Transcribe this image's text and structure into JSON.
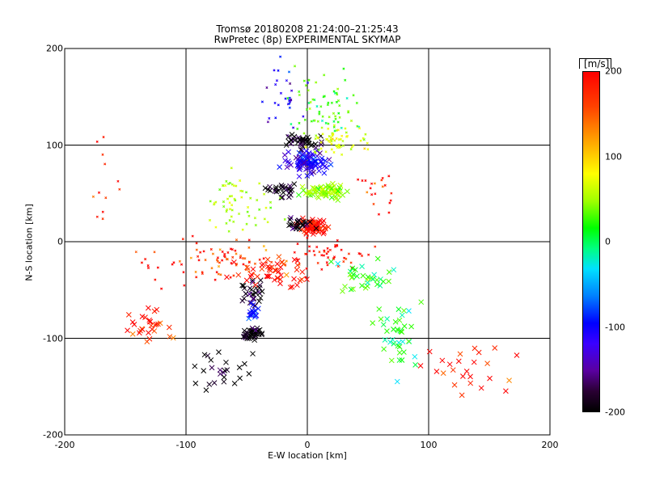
{
  "chart_data": {
    "type": "scatter",
    "title": "Tromsø 20180208 21:24:00–21:25:43",
    "subtitle": "RwPretec (8p) EXPERIMENTAL SKYMAP",
    "xlabel": "E-W location [km]",
    "ylabel": "N-S location [km]",
    "xlim": [
      -200,
      200
    ],
    "ylim": [
      -200,
      200
    ],
    "x_ticks": [
      -200,
      -100,
      0,
      100,
      200
    ],
    "y_ticks": [
      -200,
      -100,
      0,
      100,
      200
    ],
    "grid": "lines at ±100 and 0 km",
    "colorbar": {
      "unit_label": "[m/s]",
      "range": [
        -200,
        200
      ],
      "ticks": [
        200,
        100,
        0,
        -100,
        -200
      ],
      "colormap": "black-purple-blue-cyan-green-yellow-red"
    },
    "marker_legend": "x = large marker, dot/cross = small marker",
    "clusters": [
      {
        "center": [
          0,
          82
        ],
        "spread": [
          14,
          10
        ],
        "count": 90,
        "velocity": -120,
        "marker": "x"
      },
      {
        "center": [
          -3,
          103
        ],
        "spread": [
          12,
          6
        ],
        "count": 40,
        "velocity": -200,
        "marker": "x"
      },
      {
        "center": [
          18,
          52
        ],
        "spread": [
          18,
          6
        ],
        "count": 70,
        "velocity": 40,
        "marker": "x"
      },
      {
        "center": [
          -18,
          52
        ],
        "spread": [
          12,
          6
        ],
        "count": 30,
        "velocity": -200,
        "marker": "x"
      },
      {
        "center": [
          5,
          14
        ],
        "spread": [
          10,
          7
        ],
        "count": 60,
        "velocity": 200,
        "marker": "x"
      },
      {
        "center": [
          -10,
          18
        ],
        "spread": [
          12,
          6
        ],
        "count": 25,
        "velocity": -200,
        "marker": "x"
      },
      {
        "center": [
          -45,
          -95
        ],
        "spread": [
          7,
          6
        ],
        "count": 45,
        "velocity": -200,
        "marker": "x"
      },
      {
        "center": [
          -45,
          -55
        ],
        "spread": [
          8,
          12
        ],
        "count": 30,
        "velocity": -190,
        "marker": "x"
      },
      {
        "center": [
          -45,
          -75
        ],
        "spread": [
          4,
          8
        ],
        "count": 20,
        "velocity": -100,
        "marker": "x"
      },
      {
        "center": [
          -60,
          -15
        ],
        "spread": [
          30,
          15
        ],
        "count": 60,
        "velocity": 180,
        "marker": "dot"
      },
      {
        "center": [
          -30,
          -30
        ],
        "spread": [
          25,
          15
        ],
        "count": 50,
        "velocity": 200,
        "marker": "x"
      },
      {
        "center": [
          20,
          -15
        ],
        "spread": [
          25,
          15
        ],
        "count": 50,
        "velocity": 200,
        "marker": "dot"
      },
      {
        "center": [
          15,
          140
        ],
        "spread": [
          25,
          30
        ],
        "count": 70,
        "velocity": 20,
        "marker": "dot"
      },
      {
        "center": [
          -20,
          150
        ],
        "spread": [
          15,
          30
        ],
        "count": 30,
        "velocity": -120,
        "marker": "dot"
      },
      {
        "center": [
          25,
          105
        ],
        "spread": [
          20,
          12
        ],
        "count": 60,
        "velocity": 80,
        "marker": "dot"
      },
      {
        "center": [
          -55,
          40
        ],
        "spread": [
          25,
          25
        ],
        "count": 60,
        "velocity": 60,
        "marker": "dot"
      },
      {
        "center": [
          75,
          -100
        ],
        "spread": [
          15,
          35
        ],
        "count": 40,
        "velocity": 0,
        "marker": "x"
      },
      {
        "center": [
          45,
          -40
        ],
        "spread": [
          20,
          15
        ],
        "count": 35,
        "velocity": 10,
        "marker": "x"
      },
      {
        "center": [
          -130,
          -90
        ],
        "spread": [
          18,
          15
        ],
        "count": 30,
        "velocity": 200,
        "marker": "x"
      },
      {
        "center": [
          -70,
          -140
        ],
        "spread": [
          25,
          20
        ],
        "count": 25,
        "velocity": -200,
        "marker": "x"
      },
      {
        "center": [
          -100,
          -20
        ],
        "spread": [
          30,
          25
        ],
        "count": 25,
        "velocity": 200,
        "marker": "dot"
      },
      {
        "center": [
          130,
          -130
        ],
        "spread": [
          30,
          25
        ],
        "count": 25,
        "velocity": 200,
        "marker": "x"
      },
      {
        "center": [
          60,
          50
        ],
        "spread": [
          15,
          20
        ],
        "count": 20,
        "velocity": 200,
        "marker": "dot"
      },
      {
        "center": [
          -170,
          50
        ],
        "spread": [
          15,
          60
        ],
        "count": 12,
        "velocity": 200,
        "marker": "dot"
      }
    ]
  }
}
